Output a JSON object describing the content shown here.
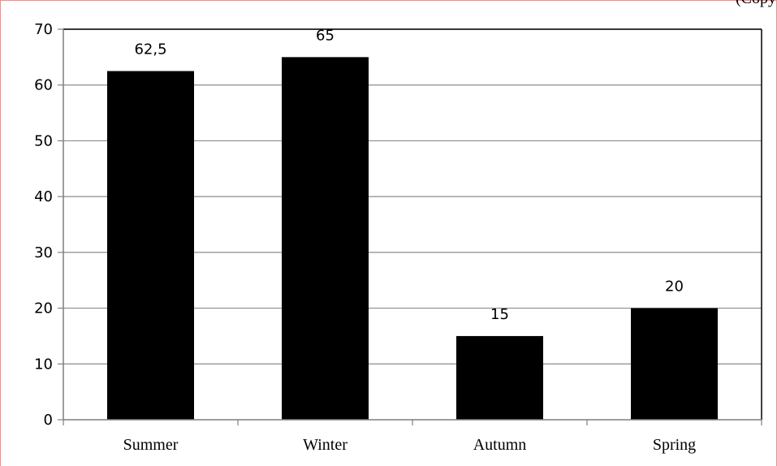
{
  "corner_text": "(Copy",
  "chart_data": {
    "type": "bar",
    "categories": [
      "Summer",
      "Winter",
      "Autumn",
      "Spring"
    ],
    "values": [
      62.5,
      65,
      15,
      20
    ],
    "data_labels": [
      "62,5",
      "65",
      "15",
      "20"
    ],
    "title": "",
    "xlabel": "",
    "ylabel": "",
    "ylim": [
      0,
      70
    ],
    "yticks": [
      0,
      10,
      20,
      30,
      40,
      50,
      60,
      70
    ],
    "grid": true,
    "legend": "none",
    "bar_color": "#000000",
    "grid_color": "#8c8c8c"
  }
}
